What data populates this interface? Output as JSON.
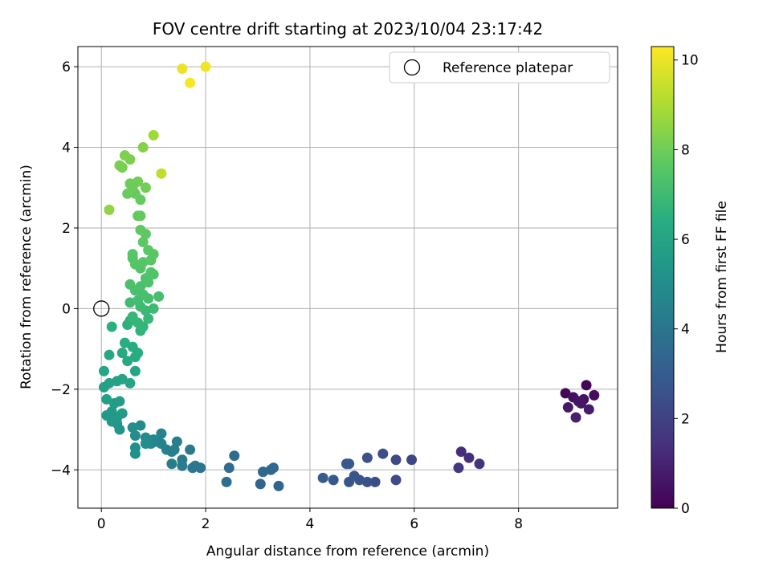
{
  "chart_data": {
    "type": "scatter",
    "title": "FOV centre drift starting at 2023/10/04 23:17:42",
    "xlabel": "Angular distance from reference (arcmin)",
    "ylabel": "Rotation from reference (arcmin)",
    "xlim": [
      -0.45,
      9.9
    ],
    "ylim": [
      -4.95,
      6.5
    ],
    "xticks": [
      0,
      2,
      4,
      6,
      8
    ],
    "yticks": [
      -4,
      -2,
      0,
      2,
      4,
      6
    ],
    "grid": true,
    "colormap": "viridis",
    "colorbar": {
      "label": "Hours from first FF file",
      "range": [
        0,
        10.3
      ],
      "ticks": [
        0,
        2,
        4,
        6,
        8,
        10
      ]
    },
    "legend": {
      "position": "top-right",
      "entries": [
        {
          "label": "Reference platepar",
          "marker": "open-circle"
        }
      ]
    },
    "reference_point": {
      "x": 0,
      "y": 0
    },
    "points": [
      {
        "x": 9.3,
        "y": -1.9,
        "c": 0.1
      },
      {
        "x": 8.9,
        "y": -2.1,
        "c": 0.2
      },
      {
        "x": 9.45,
        "y": -2.15,
        "c": 0.3
      },
      {
        "x": 9.05,
        "y": -2.2,
        "c": 0.4
      },
      {
        "x": 9.25,
        "y": -2.25,
        "c": 0.5
      },
      {
        "x": 9.2,
        "y": -2.35,
        "c": 0.6
      },
      {
        "x": 8.95,
        "y": -2.45,
        "c": 0.7
      },
      {
        "x": 9.35,
        "y": -2.5,
        "c": 0.8
      },
      {
        "x": 9.1,
        "y": -2.7,
        "c": 0.9
      },
      {
        "x": 9.15,
        "y": -2.3,
        "c": 0.55
      },
      {
        "x": 6.9,
        "y": -3.55,
        "c": 1.3
      },
      {
        "x": 7.05,
        "y": -3.7,
        "c": 1.4
      },
      {
        "x": 7.25,
        "y": -3.85,
        "c": 1.5
      },
      {
        "x": 6.85,
        "y": -3.95,
        "c": 1.6
      },
      {
        "x": 5.95,
        "y": -3.75,
        "c": 2.2
      },
      {
        "x": 5.65,
        "y": -3.75,
        "c": 2.3
      },
      {
        "x": 5.4,
        "y": -3.6,
        "c": 2.4
      },
      {
        "x": 5.1,
        "y": -3.7,
        "c": 2.5
      },
      {
        "x": 5.65,
        "y": -4.25,
        "c": 2.35
      },
      {
        "x": 5.25,
        "y": -4.3,
        "c": 2.45
      },
      {
        "x": 5.1,
        "y": -4.3,
        "c": 2.55
      },
      {
        "x": 4.95,
        "y": -4.25,
        "c": 2.6
      },
      {
        "x": 4.85,
        "y": -4.15,
        "c": 2.7
      },
      {
        "x": 4.75,
        "y": -4.3,
        "c": 2.75
      },
      {
        "x": 4.75,
        "y": -3.85,
        "c": 2.8
      },
      {
        "x": 4.7,
        "y": -3.85,
        "c": 2.85
      },
      {
        "x": 4.45,
        "y": -4.25,
        "c": 2.9
      },
      {
        "x": 4.25,
        "y": -4.2,
        "c": 2.95
      },
      {
        "x": 3.4,
        "y": -4.4,
        "c": 3.3
      },
      {
        "x": 3.05,
        "y": -4.35,
        "c": 3.35
      },
      {
        "x": 3.25,
        "y": -4.0,
        "c": 3.4
      },
      {
        "x": 3.1,
        "y": -4.05,
        "c": 3.45
      },
      {
        "x": 3.3,
        "y": -3.95,
        "c": 3.5
      },
      {
        "x": 2.55,
        "y": -3.65,
        "c": 3.6
      },
      {
        "x": 2.45,
        "y": -3.95,
        "c": 3.65
      },
      {
        "x": 2.4,
        "y": -4.3,
        "c": 3.7
      },
      {
        "x": 1.9,
        "y": -3.95,
        "c": 4.0
      },
      {
        "x": 1.75,
        "y": -3.95,
        "c": 4.05
      },
      {
        "x": 1.8,
        "y": -3.9,
        "c": 4.1
      },
      {
        "x": 1.7,
        "y": -3.5,
        "c": 4.15
      },
      {
        "x": 1.55,
        "y": -3.75,
        "c": 4.2
      },
      {
        "x": 1.55,
        "y": -3.9,
        "c": 4.25
      },
      {
        "x": 1.35,
        "y": -3.85,
        "c": 4.3
      },
      {
        "x": 1.45,
        "y": -3.3,
        "c": 4.35
      },
      {
        "x": 1.4,
        "y": -3.5,
        "c": 4.4
      },
      {
        "x": 1.35,
        "y": -3.55,
        "c": 4.45
      },
      {
        "x": 1.25,
        "y": -3.5,
        "c": 4.5
      },
      {
        "x": 1.15,
        "y": -3.1,
        "c": 4.55
      },
      {
        "x": 1.15,
        "y": -3.35,
        "c": 4.6
      },
      {
        "x": 1.05,
        "y": -3.3,
        "c": 4.65
      },
      {
        "x": 1.0,
        "y": -3.25,
        "c": 4.7
      },
      {
        "x": 0.95,
        "y": -3.35,
        "c": 4.75
      },
      {
        "x": 0.9,
        "y": -3.3,
        "c": 4.8
      },
      {
        "x": 0.85,
        "y": -3.2,
        "c": 4.85
      },
      {
        "x": 0.75,
        "y": -2.9,
        "c": 4.9
      },
      {
        "x": 0.85,
        "y": -3.35,
        "c": 4.95
      },
      {
        "x": 0.65,
        "y": -3.15,
        "c": 5.0
      },
      {
        "x": 0.6,
        "y": -2.95,
        "c": 5.05
      },
      {
        "x": 0.65,
        "y": -3.45,
        "c": 5.1
      },
      {
        "x": 0.65,
        "y": -3.6,
        "c": 5.15
      },
      {
        "x": 0.35,
        "y": -3.0,
        "c": 5.3
      },
      {
        "x": 0.3,
        "y": -2.85,
        "c": 5.35
      },
      {
        "x": 0.2,
        "y": -2.8,
        "c": 5.4
      },
      {
        "x": 0.1,
        "y": -2.65,
        "c": 5.45
      },
      {
        "x": 0.2,
        "y": -2.55,
        "c": 5.5
      },
      {
        "x": 0.3,
        "y": -2.7,
        "c": 5.55
      },
      {
        "x": 0.4,
        "y": -2.6,
        "c": 5.6
      },
      {
        "x": 0.35,
        "y": -2.3,
        "c": 5.65
      },
      {
        "x": 0.25,
        "y": -2.35,
        "c": 5.7
      },
      {
        "x": 0.1,
        "y": -2.25,
        "c": 5.75
      },
      {
        "x": 0.05,
        "y": -1.95,
        "c": 5.8
      },
      {
        "x": 0.15,
        "y": -1.85,
        "c": 5.85
      },
      {
        "x": 0.3,
        "y": -1.8,
        "c": 5.9
      },
      {
        "x": 0.4,
        "y": -1.75,
        "c": 5.95
      },
      {
        "x": 0.55,
        "y": -1.85,
        "c": 6.0
      },
      {
        "x": 0.65,
        "y": -1.55,
        "c": 6.05
      },
      {
        "x": 0.05,
        "y": -1.55,
        "c": 6.1
      },
      {
        "x": 0.15,
        "y": -1.15,
        "c": 6.15
      },
      {
        "x": 0.4,
        "y": -1.1,
        "c": 6.2
      },
      {
        "x": 0.5,
        "y": -1.3,
        "c": 6.25
      },
      {
        "x": 0.65,
        "y": -1.2,
        "c": 6.3
      },
      {
        "x": 0.7,
        "y": -1.1,
        "c": 6.35
      },
      {
        "x": 0.6,
        "y": -0.95,
        "c": 6.4
      },
      {
        "x": 0.45,
        "y": -0.85,
        "c": 6.45
      },
      {
        "x": 0.2,
        "y": -0.45,
        "c": 6.5
      },
      {
        "x": 0.5,
        "y": -0.4,
        "c": 6.55
      },
      {
        "x": 0.55,
        "y": -0.3,
        "c": 6.6
      },
      {
        "x": 0.75,
        "y": -0.55,
        "c": 6.65
      },
      {
        "x": 0.8,
        "y": -0.45,
        "c": 6.7
      },
      {
        "x": 0.7,
        "y": -0.35,
        "c": 6.75
      },
      {
        "x": 0.6,
        "y": -0.2,
        "c": 6.8
      },
      {
        "x": 0.9,
        "y": -0.25,
        "c": 6.85
      },
      {
        "x": 0.85,
        "y": -0.05,
        "c": 6.9
      },
      {
        "x": 1.0,
        "y": 0.0,
        "c": 6.95
      },
      {
        "x": 0.75,
        "y": 0.05,
        "c": 7.0
      },
      {
        "x": 0.55,
        "y": 0.15,
        "c": 7.05
      },
      {
        "x": 0.7,
        "y": 0.2,
        "c": 7.1
      },
      {
        "x": 0.9,
        "y": 0.25,
        "c": 7.15
      },
      {
        "x": 1.1,
        "y": 0.3,
        "c": 7.2
      },
      {
        "x": 0.8,
        "y": 0.35,
        "c": 7.22
      },
      {
        "x": 0.65,
        "y": 0.45,
        "c": 7.25
      },
      {
        "x": 0.75,
        "y": 0.55,
        "c": 7.28
      },
      {
        "x": 0.55,
        "y": 0.6,
        "c": 7.3
      },
      {
        "x": 0.9,
        "y": 0.65,
        "c": 7.33
      },
      {
        "x": 0.85,
        "y": 0.75,
        "c": 7.36
      },
      {
        "x": 1.0,
        "y": 0.85,
        "c": 7.4
      },
      {
        "x": 0.95,
        "y": 0.9,
        "c": 7.42
      },
      {
        "x": 0.75,
        "y": 1.0,
        "c": 7.45
      },
      {
        "x": 0.65,
        "y": 1.1,
        "c": 7.48
      },
      {
        "x": 0.6,
        "y": 1.25,
        "c": 7.5
      },
      {
        "x": 0.6,
        "y": 1.35,
        "c": 7.53
      },
      {
        "x": 0.8,
        "y": 1.15,
        "c": 7.55
      },
      {
        "x": 0.95,
        "y": 1.2,
        "c": 7.58
      },
      {
        "x": 1.0,
        "y": 1.35,
        "c": 7.6
      },
      {
        "x": 0.9,
        "y": 1.45,
        "c": 7.63
      },
      {
        "x": 0.8,
        "y": 1.65,
        "c": 7.66
      },
      {
        "x": 0.85,
        "y": 1.85,
        "c": 7.7
      },
      {
        "x": 0.75,
        "y": 1.95,
        "c": 7.73
      },
      {
        "x": 0.7,
        "y": 2.3,
        "c": 7.76
      },
      {
        "x": 0.75,
        "y": 2.3,
        "c": 7.8
      },
      {
        "x": 0.75,
        "y": 2.7,
        "c": 7.83
      },
      {
        "x": 0.65,
        "y": 2.85,
        "c": 7.86
      },
      {
        "x": 0.5,
        "y": 2.85,
        "c": 7.9
      },
      {
        "x": 0.6,
        "y": 3.0,
        "c": 7.93
      },
      {
        "x": 0.55,
        "y": 3.1,
        "c": 7.96
      },
      {
        "x": 0.7,
        "y": 3.15,
        "c": 8.0
      },
      {
        "x": 0.85,
        "y": 3.0,
        "c": 8.05
      },
      {
        "x": 0.4,
        "y": 3.5,
        "c": 8.1
      },
      {
        "x": 0.35,
        "y": 3.55,
        "c": 8.15
      },
      {
        "x": 0.55,
        "y": 3.7,
        "c": 8.2
      },
      {
        "x": 0.45,
        "y": 3.8,
        "c": 8.25
      },
      {
        "x": 0.8,
        "y": 4.0,
        "c": 8.35
      },
      {
        "x": 0.15,
        "y": 2.45,
        "c": 8.5
      },
      {
        "x": 1.0,
        "y": 4.3,
        "c": 8.8
      },
      {
        "x": 1.15,
        "y": 3.35,
        "c": 9.3
      },
      {
        "x": 1.55,
        "y": 5.95,
        "c": 10.0
      },
      {
        "x": 2.0,
        "y": 6.0,
        "c": 10.1
      },
      {
        "x": 1.7,
        "y": 5.6,
        "c": 10.2
      }
    ]
  }
}
